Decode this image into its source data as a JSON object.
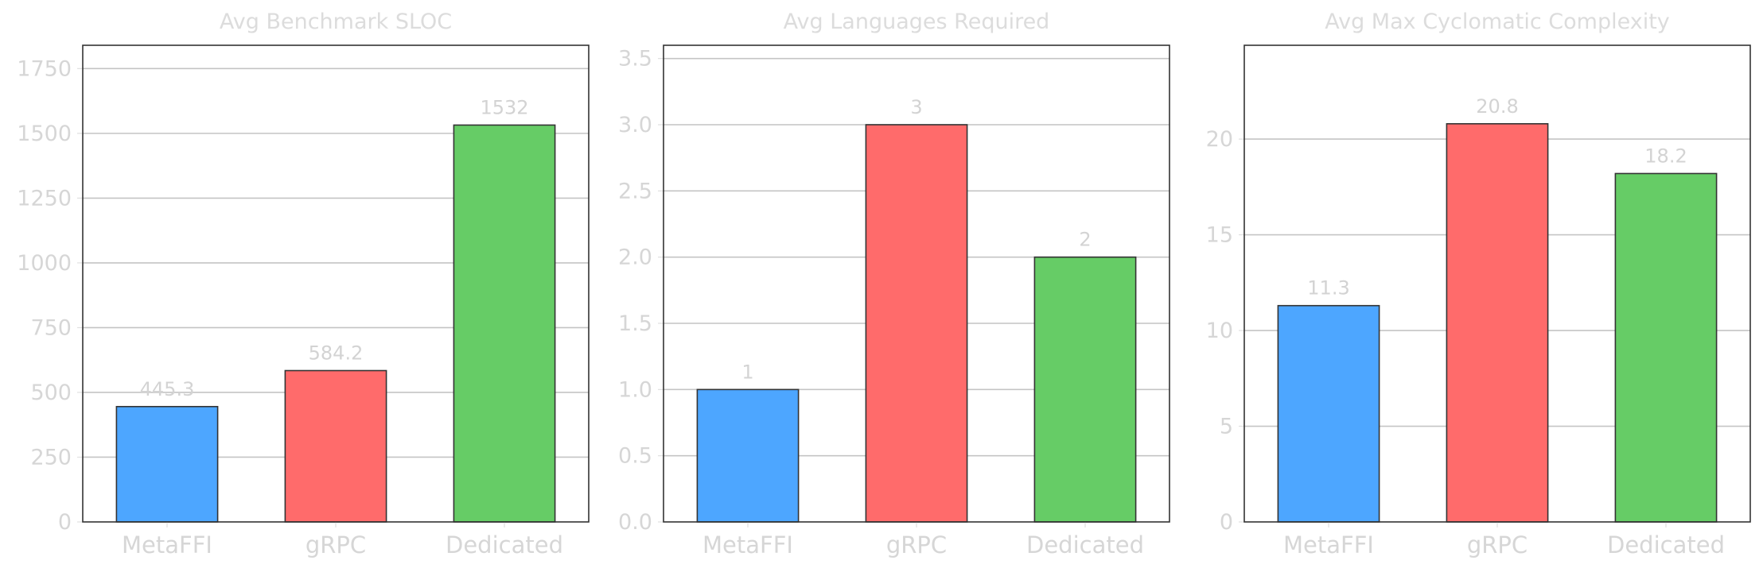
{
  "colors": {
    "metaffi": "#4da6ff",
    "grpc": "#ff6b6b",
    "dedicated": "#66cc66"
  },
  "chart_data": [
    {
      "type": "bar",
      "title": "Avg Benchmark SLOC",
      "categories": [
        "MetaFFI",
        "gRPC",
        "Dedicated"
      ],
      "values": [
        445.3,
        584.2,
        1532
      ],
      "data_labels": [
        "445.3",
        "584.2",
        "1532"
      ],
      "ylim": [
        0,
        1840
      ],
      "yticks": [
        0,
        250,
        500,
        750,
        1000,
        1250,
        1500,
        1750
      ],
      "grid": true
    },
    {
      "type": "bar",
      "title": "Avg Languages Required",
      "categories": [
        "MetaFFI",
        "gRPC",
        "Dedicated"
      ],
      "values": [
        1,
        3,
        2
      ],
      "data_labels": [
        "1",
        "3",
        "2"
      ],
      "ylim": [
        0,
        3.6
      ],
      "yticks": [
        0.0,
        0.5,
        1.0,
        1.5,
        2.0,
        2.5,
        3.0,
        3.5
      ],
      "ytick_labels": [
        "0.0",
        "0.5",
        "1.0",
        "1.5",
        "2.0",
        "2.5",
        "3.0",
        "3.5"
      ],
      "grid": true
    },
    {
      "type": "bar",
      "title": "Avg Max Cyclomatic Complexity",
      "categories": [
        "MetaFFI",
        "gRPC",
        "Dedicated"
      ],
      "values": [
        11.3,
        20.8,
        18.2
      ],
      "data_labels": [
        "11.3",
        "20.8",
        "18.2"
      ],
      "ylim": [
        0,
        24.9
      ],
      "yticks": [
        0,
        5,
        10,
        15,
        20
      ],
      "grid": true
    }
  ]
}
